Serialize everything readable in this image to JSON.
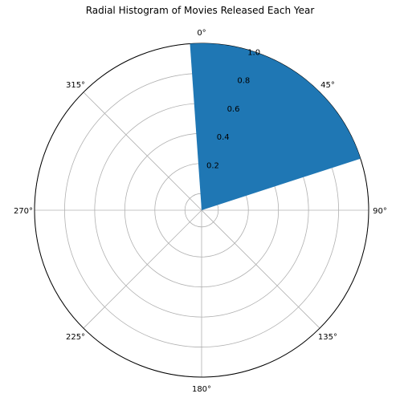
{
  "chart_data": {
    "type": "bar",
    "projection": "polar",
    "title": "Radial Histogram of Movies Released Each Year",
    "angle_ticks": [
      "0°",
      "45°",
      "90°",
      "135°",
      "180°",
      "225°",
      "270°",
      "315°"
    ],
    "angle_tick_values": [
      0,
      45,
      90,
      135,
      180,
      225,
      270,
      315
    ],
    "radial_ticks": [
      "0.2",
      "0.4",
      "0.6",
      "0.8",
      "1.0"
    ],
    "radial_tick_values": [
      0.2,
      0.4,
      0.6,
      0.8,
      1.0
    ],
    "rlim": [
      0,
      1.0
    ],
    "theta_zero_location": "N",
    "theta_direction": "clockwise",
    "grid": true,
    "bars": [
      {
        "theta_start": -4,
        "theta_end": 72,
        "value": 1.0,
        "color": "#1f77b4"
      }
    ]
  }
}
